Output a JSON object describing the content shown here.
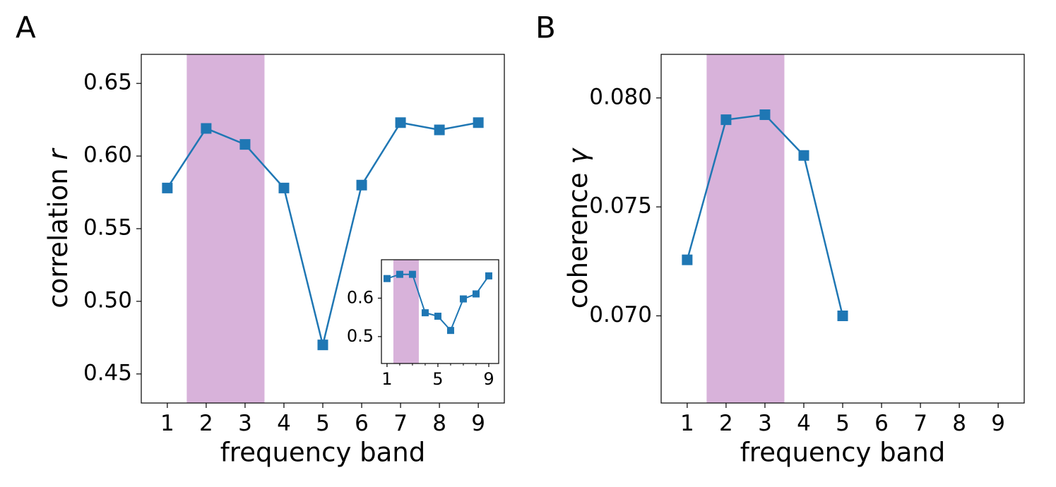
{
  "chart_data": [
    {
      "type": "line",
      "panel_label": "A",
      "xlabel": "frequency band",
      "ylabel": "correlation",
      "ylabel_symbol": "r",
      "x": [
        1,
        2,
        3,
        4,
        5,
        6,
        7,
        8,
        9
      ],
      "values": [
        0.578,
        0.619,
        0.608,
        0.578,
        0.47,
        0.58,
        0.623,
        0.618,
        0.623
      ],
      "color": "#1f77b4",
      "marker": "square",
      "highlight": [
        1.5,
        3.5
      ],
      "highlight_color": "#d8b2da",
      "xlim": [
        0.33,
        9.67
      ],
      "xticks": [
        1,
        2,
        3,
        4,
        5,
        6,
        7,
        8,
        9
      ],
      "ylim": [
        0.43,
        0.67
      ],
      "yticks": [
        0.45,
        {
          "value": 0.5,
          "label": "0.50"
        },
        0.55,
        {
          "value": 0.6,
          "label": "0.60"
        },
        0.65
      ]
    },
    {
      "type": "line",
      "x": [
        1,
        2,
        3,
        4,
        5,
        6,
        7,
        8,
        9
      ],
      "values": [
        0.651,
        0.662,
        0.662,
        0.562,
        0.553,
        0.516,
        0.598,
        0.611,
        0.658
      ],
      "color": "#1f77b4",
      "marker": "square",
      "highlight": [
        1.5,
        3.5
      ],
      "highlight_color": "#d8b2da",
      "xlim": [
        0.56,
        9.78
      ],
      "xticks": [
        1,
        5,
        9
      ],
      "xminorticks": [
        2,
        3,
        4,
        6,
        7,
        8
      ],
      "ylim": [
        0.43,
        0.7
      ],
      "yticks": [
        0.5,
        0.6
      ]
    },
    {
      "type": "line",
      "panel_label": "B",
      "xlabel": "frequency band",
      "ylabel": "coherence",
      "ylabel_symbol": "γ",
      "x": [
        1,
        2,
        3,
        4,
        5,
        6,
        7,
        8,
        9
      ],
      "values": [
        0.07257,
        0.079,
        0.07923,
        0.07736,
        0.07,
        null,
        null,
        null,
        null
      ],
      "color": "#1f77b4",
      "marker": "square",
      "highlight": [
        1.5,
        3.5
      ],
      "highlight_color": "#d8b2da",
      "xlim": [
        0.33,
        9.67
      ],
      "xticks": [
        1,
        2,
        3,
        4,
        5,
        6,
        7,
        8,
        9
      ],
      "ylim": [
        0.066,
        0.082
      ],
      "yticks": [
        {
          "value": 0.07,
          "label": "0.070"
        },
        0.075,
        {
          "value": 0.08,
          "label": "0.080"
        }
      ]
    }
  ]
}
